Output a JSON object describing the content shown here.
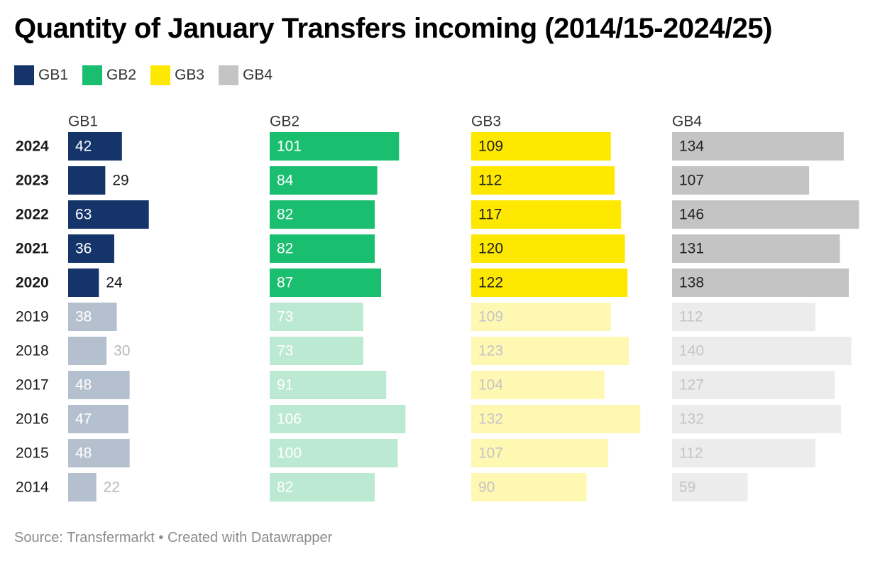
{
  "title": "Quantity of January Transfers incoming (2014/15-2024/25)",
  "footer": {
    "source": "Source: Transfermarkt",
    "separator": "•",
    "credit": "Created with Datawrapper"
  },
  "chart_data": {
    "type": "bar",
    "orientation": "horizontal",
    "layout": "small-multiples",
    "title": "Quantity of January Transfers incoming (2014/15-2024/25)",
    "legend_position": "top-left",
    "categories": [
      "2024",
      "2023",
      "2022",
      "2021",
      "2020",
      "2019",
      "2018",
      "2017",
      "2016",
      "2015",
      "2014"
    ],
    "highlighted_categories": [
      "2024",
      "2023",
      "2022",
      "2021",
      "2020"
    ],
    "series": [
      {
        "name": "GB1",
        "color": "#14346a",
        "faded_color": "#b5c0cf",
        "values": [
          42,
          29,
          63,
          36,
          24,
          38,
          30,
          48,
          47,
          48,
          22
        ]
      },
      {
        "name": "GB2",
        "color": "#19bf6f",
        "faded_color": "#bbe9d2",
        "values": [
          101,
          84,
          82,
          82,
          87,
          73,
          73,
          91,
          106,
          100,
          82
        ]
      },
      {
        "name": "GB3",
        "color": "#ffe800",
        "faded_color": "#fff8b3",
        "values": [
          109,
          112,
          117,
          120,
          122,
          109,
          123,
          104,
          132,
          107,
          90
        ]
      },
      {
        "name": "GB4",
        "color": "#c4c4c4",
        "faded_color": "#ececec",
        "values": [
          134,
          107,
          146,
          131,
          138,
          112,
          140,
          127,
          132,
          112,
          59
        ]
      }
    ],
    "grid": false
  }
}
